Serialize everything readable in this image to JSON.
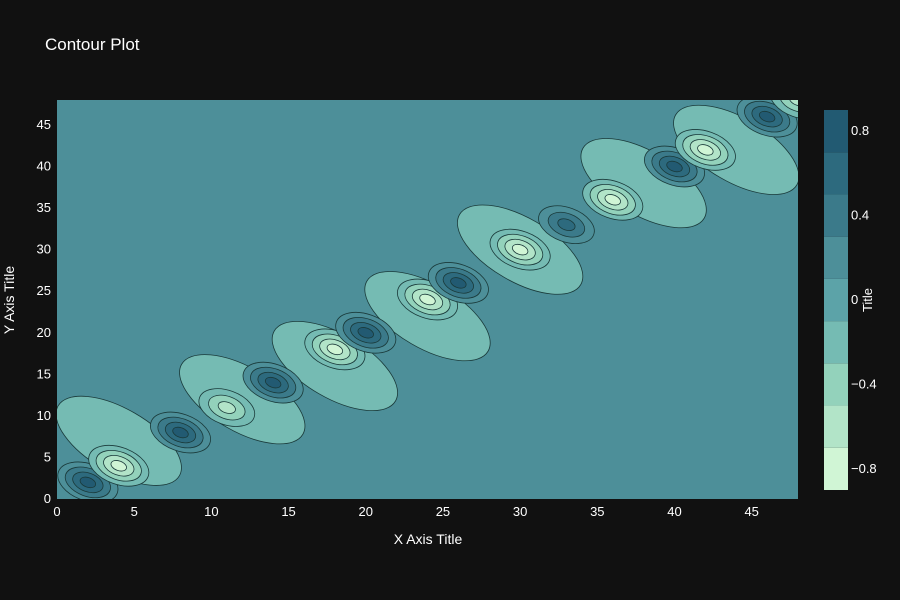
{
  "chart_data": {
    "type": "contour",
    "title": "Contour Plot",
    "xlabel": "X Axis Title",
    "ylabel": "Y Axis Title",
    "xlim": [
      0,
      48
    ],
    "ylim": [
      0,
      48
    ],
    "x_ticks": [
      0,
      5,
      10,
      15,
      20,
      25,
      30,
      35,
      40,
      45
    ],
    "y_ticks": [
      0,
      5,
      10,
      15,
      20,
      25,
      30,
      35,
      40,
      45
    ],
    "colorbar": {
      "title": "Title",
      "ticks": [
        0.8,
        0.4,
        0,
        -0.4,
        -0.8
      ],
      "tick_labels": [
        "0.8",
        "0.4",
        "0",
        "−0.4",
        "−0.8"
      ],
      "range": [
        -0.9,
        0.9
      ]
    },
    "levels": [
      -0.9,
      -0.7,
      -0.5,
      -0.3,
      -0.1,
      0.1,
      0.3,
      0.5,
      0.7,
      0.9
    ],
    "colors": [
      "#d0f5d5",
      "#b2e4c8",
      "#93d2bb",
      "#75bbb3",
      "#5ca3a8",
      "#4d8f99",
      "#3b7a8a",
      "#2d6a7e",
      "#225a72",
      "#174660"
    ],
    "line_color": "#1a3a3a",
    "background": "#111111",
    "peaks": [
      {
        "x": 2,
        "y": 2,
        "value": 0.9
      },
      {
        "x": 4,
        "y": 4,
        "value": -0.75
      },
      {
        "x": 8,
        "y": 8,
        "value": 0.9
      },
      {
        "x": 11,
        "y": 11,
        "value": -0.55
      },
      {
        "x": 14,
        "y": 14,
        "value": 0.9
      },
      {
        "x": 18,
        "y": 18,
        "value": -0.75
      },
      {
        "x": 20,
        "y": 20,
        "value": 0.9
      },
      {
        "x": 24,
        "y": 24,
        "value": -0.75
      },
      {
        "x": 26,
        "y": 26,
        "value": 0.75
      },
      {
        "x": 30,
        "y": 30,
        "value": -0.85
      },
      {
        "x": 33,
        "y": 33,
        "value": 0.7
      },
      {
        "x": 36,
        "y": 36,
        "value": -0.85
      },
      {
        "x": 40,
        "y": 40,
        "value": 0.85
      },
      {
        "x": 42,
        "y": 42,
        "value": -0.8
      },
      {
        "x": 46,
        "y": 46,
        "value": 0.9
      },
      {
        "x": 48,
        "y": 48,
        "value": -0.5
      }
    ],
    "lobes": [
      {
        "x": 4,
        "y": 7,
        "value": -0.2
      },
      {
        "x": 12,
        "y": 12,
        "value": -0.2
      },
      {
        "x": 18,
        "y": 16,
        "value": -0.2
      },
      {
        "x": 24,
        "y": 22,
        "value": -0.2
      },
      {
        "x": 30,
        "y": 30,
        "value": -0.2
      },
      {
        "x": 38,
        "y": 38,
        "value": -0.2
      },
      {
        "x": 44,
        "y": 42,
        "value": -0.2
      }
    ]
  }
}
